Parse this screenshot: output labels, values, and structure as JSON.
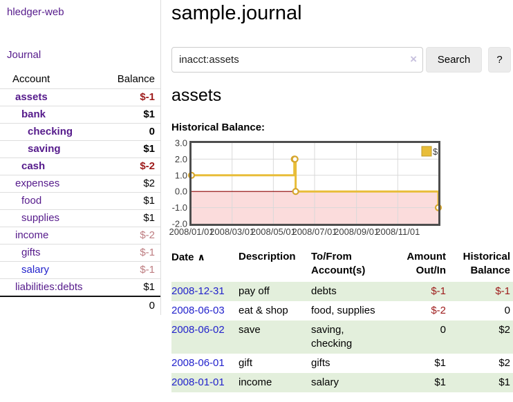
{
  "app": {
    "title": "hledger-web"
  },
  "sidebar": {
    "journal_link": "Journal",
    "accounts_table": {
      "headers": {
        "account": "Account",
        "balance": "Balance"
      },
      "rows": [
        {
          "name": "assets",
          "depth": 1,
          "balance": "$-1",
          "bold": true,
          "neg": "strong"
        },
        {
          "name": "bank",
          "depth": 2,
          "balance": "$1",
          "bold": true
        },
        {
          "name": "checking",
          "depth": 3,
          "balance": "0",
          "bold": true
        },
        {
          "name": "saving",
          "depth": 3,
          "balance": "$1",
          "bold": true
        },
        {
          "name": "cash",
          "depth": 2,
          "balance": "$-2",
          "bold": true,
          "neg": "strong"
        },
        {
          "name": "expenses",
          "depth": 1,
          "balance": "$2"
        },
        {
          "name": "food",
          "depth": 2,
          "balance": "$1"
        },
        {
          "name": "supplies",
          "depth": 2,
          "balance": "$1"
        },
        {
          "name": "income",
          "depth": 1,
          "balance": "$-2",
          "neg": "muted"
        },
        {
          "name": "gifts",
          "depth": 2,
          "balance": "$-1",
          "neg": "muted"
        },
        {
          "name": "salary",
          "depth": 2,
          "balance": "$-1",
          "neg": "muted",
          "link_style": "blue"
        },
        {
          "name": "liabilities:debts",
          "depth": 1,
          "balance": "$1"
        }
      ],
      "total": "0"
    }
  },
  "header": {
    "title": "sample.journal"
  },
  "search": {
    "value": "inacct:assets",
    "clear_icon": "×",
    "button": "Search",
    "help_button": "?"
  },
  "account_page": {
    "heading": "assets",
    "chart_label": "Historical Balance:"
  },
  "chart_data": {
    "type": "line",
    "series": [
      {
        "name": "$",
        "step": true,
        "color": "#e8bd39",
        "points": [
          [
            "2008-01-01",
            1
          ],
          [
            "2008-06-01",
            2
          ],
          [
            "2008-06-02",
            2
          ],
          [
            "2008-06-03",
            0
          ],
          [
            "2008-12-31",
            -1
          ]
        ]
      }
    ],
    "x_range": [
      "2008-01-01",
      "2008-12-31"
    ],
    "ylim": [
      -2,
      3
    ],
    "y_ticks": [
      "3.0",
      "2.0",
      "1.0",
      "0.0",
      "-1.0",
      "-2.0"
    ],
    "x_ticks": [
      "2008/01/01",
      "2008/03/01",
      "2008/05/01",
      "2008/07/01",
      "2008/09/01",
      "2008/11/01"
    ],
    "legend": {
      "label": "$",
      "position": "top-right"
    },
    "grid": true,
    "negative_region_color": "#fbdcdc",
    "zero_line_color": "#8b0000",
    "marker": {
      "fill": "#ffffff",
      "stroke": "#d6a62d"
    }
  },
  "register_table": {
    "headers": {
      "date": "Date",
      "sort_icon": "∧",
      "description": "Description",
      "tofrom": "To/From Account(s)",
      "amount": "Amount Out/In",
      "balance": "Historical Balance"
    },
    "rows": [
      {
        "date": "2008-12-31",
        "description": "pay off",
        "accounts": "debts",
        "amount": "$-1",
        "balance": "$-1",
        "amount_neg": true,
        "balance_neg": true,
        "shaded": true
      },
      {
        "date": "2008-06-03",
        "description": "eat & shop",
        "accounts": "food, supplies",
        "amount": "$-2",
        "balance": "0",
        "amount_neg": true,
        "balance_neg": false,
        "shaded": false
      },
      {
        "date": "2008-06-02",
        "description": "save",
        "accounts": "saving, checking",
        "amount": "0",
        "balance": "$2",
        "amount_neg": false,
        "balance_neg": false,
        "shaded": true
      },
      {
        "date": "2008-06-01",
        "description": "gift",
        "accounts": "gifts",
        "amount": "$1",
        "balance": "$2",
        "amount_neg": false,
        "balance_neg": false,
        "shaded": false
      },
      {
        "date": "2008-01-01",
        "description": "income",
        "accounts": "salary",
        "amount": "$1",
        "balance": "$1",
        "amount_neg": false,
        "balance_neg": false,
        "shaded": true
      }
    ]
  },
  "colors": {
    "purple_link": "#551a8b",
    "blue_link": "#2222cc",
    "negative_strong": "#9d1a1a",
    "negative_muted": "#bd7c80",
    "row_green": "#e3efdc",
    "button_bg": "#ececec",
    "border_light": "#dddddd"
  }
}
